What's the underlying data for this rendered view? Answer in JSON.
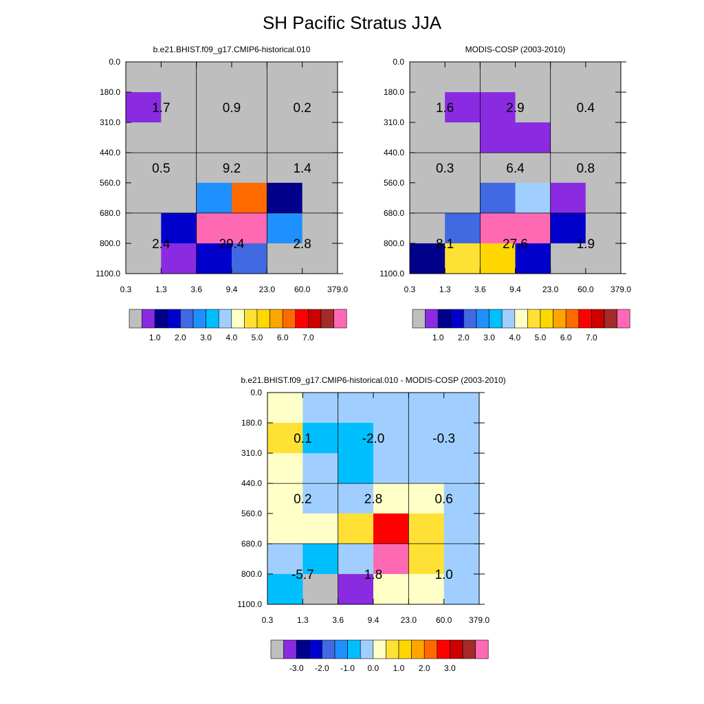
{
  "title": "SH Pacific Stratus JJA",
  "colors": {
    "abs_levels": [
      "#bebebe",
      "#8a2be2",
      "#00008b",
      "#0000cd",
      "#4169e1",
      "#1e90ff",
      "#00bfff",
      "#a0cfff",
      "#ffffc8",
      "#ffe135",
      "#ffd700",
      "#ffa500",
      "#ff6a00",
      "#ff0000",
      "#cd0000",
      "#a52a2a",
      "#ff69b4"
    ],
    "diff_levels": [
      "#bebebe",
      "#8a2be2",
      "#00008b",
      "#0000cd",
      "#4169e1",
      "#1e90ff",
      "#00bfff",
      "#a0cfff",
      "#ffffc8",
      "#ffe135",
      "#ffd700",
      "#ffa500",
      "#ff6a00",
      "#ff0000",
      "#cd0000",
      "#a52a2a",
      "#ff69b4"
    ]
  },
  "chart_data": [
    {
      "type": "heatmap",
      "title": "b.e21.BHIST.f09_g17.CMIP6-historical.010",
      "x_ticks": [
        "0.3",
        "1.3",
        "3.6",
        "9.4",
        "23.0",
        "60.0",
        "379.0"
      ],
      "y_ticks": [
        "0.0",
        "180.0",
        "310.0",
        "440.0",
        "560.0",
        "680.0",
        "800.0",
        "1100.0"
      ],
      "cell_color_index": [
        [
          0,
          0,
          0,
          0,
          0,
          0
        ],
        [
          1,
          0,
          0,
          0,
          0,
          0
        ],
        [
          0,
          0,
          0,
          0,
          0,
          0
        ],
        [
          0,
          0,
          0,
          0,
          0,
          0
        ],
        [
          0,
          0,
          5,
          12,
          2,
          0
        ],
        [
          0,
          3,
          16,
          16,
          5,
          0
        ],
        [
          0,
          1,
          3,
          4,
          0,
          0
        ]
      ],
      "block_values": [
        [
          "1.7",
          "0.9",
          "0.2"
        ],
        [
          "0.5",
          "9.2",
          "1.4"
        ],
        [
          "2.4",
          "29.4",
          "2.8"
        ]
      ],
      "colorbar_labels": [
        "1.0",
        "2.0",
        "3.0",
        "4.0",
        "5.0",
        "6.0",
        "7.0"
      ]
    },
    {
      "type": "heatmap",
      "title": "MODIS-COSP (2003-2010)",
      "x_ticks": [
        "0.3",
        "1.3",
        "3.6",
        "9.4",
        "23.0",
        "60.0",
        "379.0"
      ],
      "y_ticks": [
        "0.0",
        "180.0",
        "310.0",
        "440.0",
        "560.0",
        "680.0",
        "800.0",
        "1100.0"
      ],
      "cell_color_index": [
        [
          0,
          0,
          0,
          0,
          0,
          0
        ],
        [
          0,
          1,
          1,
          0,
          0,
          0
        ],
        [
          0,
          0,
          1,
          1,
          0,
          0
        ],
        [
          0,
          0,
          0,
          0,
          0,
          0
        ],
        [
          0,
          0,
          4,
          7,
          1,
          0
        ],
        [
          0,
          4,
          16,
          16,
          3,
          0
        ],
        [
          2,
          9,
          10,
          3,
          0,
          0
        ]
      ],
      "block_values": [
        [
          "1.6",
          "2.9",
          "0.4"
        ],
        [
          "0.3",
          "6.4",
          "0.8"
        ],
        [
          "8.1",
          "27.6",
          "1.9"
        ]
      ],
      "colorbar_labels": [
        "1.0",
        "2.0",
        "3.0",
        "4.0",
        "5.0",
        "6.0",
        "7.0"
      ]
    },
    {
      "type": "heatmap",
      "title": "b.e21.BHIST.f09_g17.CMIP6-historical.010 - MODIS-COSP (2003-2010)",
      "x_ticks": [
        "0.3",
        "1.3",
        "3.6",
        "9.4",
        "23.0",
        "60.0",
        "379.0"
      ],
      "y_ticks": [
        "0.0",
        "180.0",
        "310.0",
        "440.0",
        "560.0",
        "680.0",
        "800.0",
        "1100.0"
      ],
      "cell_color_index": [
        [
          8,
          7,
          7,
          7,
          7,
          7
        ],
        [
          9,
          6,
          6,
          7,
          7,
          7
        ],
        [
          8,
          7,
          6,
          7,
          7,
          7
        ],
        [
          8,
          7,
          7,
          8,
          8,
          7
        ],
        [
          8,
          8,
          9,
          13,
          9,
          7
        ],
        [
          7,
          6,
          7,
          16,
          9,
          7
        ],
        [
          6,
          0,
          1,
          8,
          8,
          7
        ]
      ],
      "block_values": [
        [
          "0.1",
          "-2.0",
          "-0.3"
        ],
        [
          "0.2",
          "2.8",
          "0.6"
        ],
        [
          "-5.7",
          "1.8",
          "1.0"
        ]
      ],
      "colorbar_labels": [
        "-3.0",
        "-2.0",
        "-1.0",
        "0.0",
        "1.0",
        "2.0",
        "3.0"
      ]
    }
  ]
}
